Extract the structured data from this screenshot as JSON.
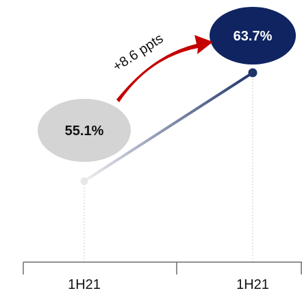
{
  "chart_data": {
    "type": "line",
    "categories": [
      "1H21",
      "1H21"
    ],
    "values": [
      55.1,
      63.7
    ],
    "value_labels": [
      "55.1%",
      "63.7%"
    ],
    "change_label": "+8.6 ppts",
    "grid": false,
    "colors": {
      "start": "#e8e8e8",
      "end": "#1f3469",
      "start_bubble": "#d4d4d4",
      "end_bubble": "#0f2461",
      "arrow": "#c40000",
      "axis": "#6b6b6b",
      "guide": "#b8b8b8"
    }
  }
}
